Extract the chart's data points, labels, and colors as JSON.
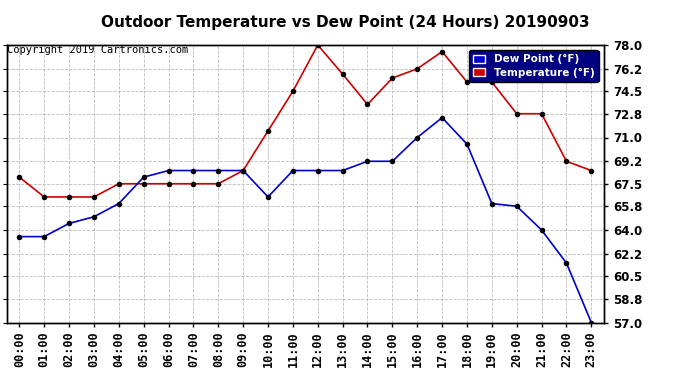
{
  "title": "Outdoor Temperature vs Dew Point (24 Hours) 20190903",
  "copyright": "Copyright 2019 Cartronics.com",
  "legend_dew": "Dew Point (°F)",
  "legend_temp": "Temperature (°F)",
  "hours": [
    "00:00",
    "01:00",
    "02:00",
    "03:00",
    "04:00",
    "05:00",
    "06:00",
    "07:00",
    "08:00",
    "09:00",
    "10:00",
    "11:00",
    "12:00",
    "13:00",
    "14:00",
    "15:00",
    "16:00",
    "17:00",
    "18:00",
    "19:00",
    "20:00",
    "21:00",
    "22:00",
    "23:00"
  ],
  "temperature": [
    68.0,
    66.5,
    66.5,
    66.5,
    67.5,
    67.5,
    67.5,
    67.5,
    67.5,
    68.5,
    71.5,
    74.5,
    78.0,
    75.8,
    73.5,
    75.5,
    76.2,
    77.5,
    75.2,
    75.2,
    72.8,
    72.8,
    69.2,
    68.5
  ],
  "dew_point": [
    63.5,
    63.5,
    64.5,
    65.0,
    66.0,
    68.0,
    68.5,
    68.5,
    68.5,
    68.5,
    66.5,
    68.5,
    68.5,
    68.5,
    69.2,
    69.2,
    71.0,
    72.5,
    70.5,
    66.0,
    65.8,
    64.0,
    61.5,
    57.0
  ],
  "ylim": [
    57.0,
    78.0
  ],
  "yticks": [
    57.0,
    58.8,
    60.5,
    62.2,
    64.0,
    65.8,
    67.5,
    69.2,
    71.0,
    72.8,
    74.5,
    76.2,
    78.0
  ],
  "temp_color": "#cc0000",
  "dew_color": "#0000cc",
  "marker_color": "#000000",
  "bg_color": "#ffffff",
  "grid_color": "#bbbbbb",
  "title_fontsize": 11,
  "axis_fontsize": 8.5,
  "copyright_fontsize": 7.5
}
